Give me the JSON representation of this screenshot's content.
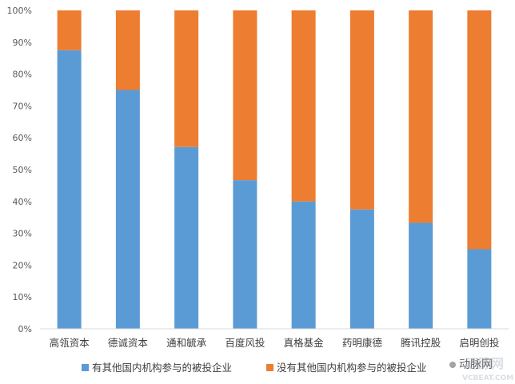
{
  "chart_data": {
    "type": "bar",
    "stacked": true,
    "categories": [
      "高瓴资本",
      "德诚资本",
      "通和毓承",
      "百度风投",
      "真格基金",
      "药明康德",
      "腾讯控股",
      "启明创投"
    ],
    "series": [
      {
        "name": "有其他国内机构参与的被投企业",
        "color": "#5b9bd5",
        "values": [
          87.5,
          75,
          57.1,
          46.7,
          40,
          37.5,
          33.3,
          25
        ]
      },
      {
        "name": "没有其他国内机构参与的被投企业",
        "color": "#ed7d31",
        "values": [
          12.5,
          25,
          42.9,
          53.3,
          60,
          62.5,
          66.7,
          75
        ]
      }
    ],
    "yticks": [
      "0%",
      "10%",
      "20%",
      "30%",
      "40%",
      "50%",
      "60%",
      "70%",
      "80%",
      "90%",
      "100%"
    ],
    "ylim": [
      0,
      100
    ],
    "grid": false,
    "legend_position": "bottom"
  },
  "watermark": {
    "logo_text": "动脉网",
    "logo_sub": "VCBEAT.COM",
    "wechat_text": "动脉网"
  },
  "colors": {
    "axis": "#d9d9d9",
    "blue": "#5b9bd5",
    "orange": "#ed7d31"
  }
}
